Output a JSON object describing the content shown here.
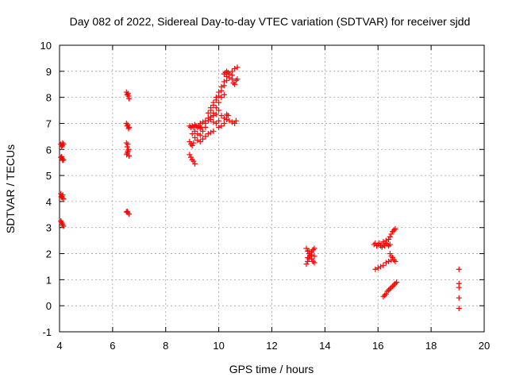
{
  "chart_data": {
    "type": "scatter",
    "title": "Day 082 of 2022, Sidereal Day-to-day VTEC variation (SDTVAR) for receiver sjdd",
    "xlabel": "GPS time / hours",
    "ylabel": "SDTVAR / TECUs",
    "xlim": [
      4,
      20
    ],
    "ylim": [
      -1,
      10
    ],
    "xticks": [
      4,
      6,
      8,
      10,
      12,
      14,
      16,
      18,
      20
    ],
    "yticks": [
      -1,
      0,
      1,
      2,
      3,
      4,
      5,
      6,
      7,
      8,
      9,
      10
    ],
    "grid": true,
    "marker": "+",
    "color": "#ff0000",
    "series": [
      {
        "name": "sjdd",
        "points": [
          [
            4.05,
            6.2
          ],
          [
            4.1,
            6.15
          ],
          [
            4.15,
            6.2
          ],
          [
            4.08,
            6.1
          ],
          [
            4.12,
            6.25
          ],
          [
            4.05,
            5.7
          ],
          [
            4.1,
            5.65
          ],
          [
            4.15,
            5.6
          ],
          [
            4.08,
            5.72
          ],
          [
            4.12,
            5.58
          ],
          [
            4.05,
            4.3
          ],
          [
            4.08,
            4.2
          ],
          [
            4.1,
            4.15
          ],
          [
            4.15,
            4.1
          ],
          [
            4.12,
            4.25
          ],
          [
            4.06,
            4.18
          ],
          [
            4.05,
            3.25
          ],
          [
            4.1,
            3.15
          ],
          [
            4.15,
            3.05
          ],
          [
            4.08,
            3.2
          ],
          [
            4.12,
            3.1
          ],
          [
            6.52,
            8.2
          ],
          [
            6.58,
            8.15
          ],
          [
            6.6,
            8.05
          ],
          [
            6.62,
            7.95
          ],
          [
            6.55,
            8.1
          ],
          [
            6.52,
            7.0
          ],
          [
            6.57,
            6.95
          ],
          [
            6.62,
            6.85
          ],
          [
            6.55,
            6.9
          ],
          [
            6.6,
            6.8
          ],
          [
            6.52,
            6.25
          ],
          [
            6.57,
            6.2
          ],
          [
            6.55,
            6.1
          ],
          [
            6.6,
            6.0
          ],
          [
            6.58,
            5.95
          ],
          [
            6.55,
            5.85
          ],
          [
            6.62,
            5.75
          ],
          [
            6.53,
            5.8
          ],
          [
            6.57,
            5.9
          ],
          [
            6.52,
            3.6
          ],
          [
            6.57,
            3.58
          ],
          [
            6.62,
            3.52
          ],
          [
            6.55,
            3.62
          ],
          [
            8.9,
            5.8
          ],
          [
            8.95,
            5.7
          ],
          [
            9.0,
            5.6
          ],
          [
            9.05,
            5.55
          ],
          [
            9.1,
            5.45
          ],
          [
            8.9,
            6.3
          ],
          [
            8.95,
            6.2
          ],
          [
            9.0,
            6.15
          ],
          [
            9.05,
            6.25
          ],
          [
            8.9,
            6.9
          ],
          [
            8.95,
            6.85
          ],
          [
            9.0,
            6.9
          ],
          [
            9.05,
            6.85
          ],
          [
            9.1,
            6.95
          ],
          [
            9.15,
            6.9
          ],
          [
            9.2,
            6.85
          ],
          [
            9.25,
            6.9
          ],
          [
            9.3,
            6.8
          ],
          [
            9.35,
            6.85
          ],
          [
            9.0,
            6.6
          ],
          [
            9.1,
            6.45
          ],
          [
            9.2,
            6.35
          ],
          [
            9.3,
            6.3
          ],
          [
            9.4,
            6.4
          ],
          [
            9.5,
            6.5
          ],
          [
            9.6,
            6.6
          ],
          [
            9.7,
            6.65
          ],
          [
            9.8,
            6.7
          ],
          [
            9.1,
            6.7
          ],
          [
            9.2,
            6.6
          ],
          [
            9.3,
            6.55
          ],
          [
            9.4,
            6.7
          ],
          [
            9.5,
            6.85
          ],
          [
            9.3,
            7.0
          ],
          [
            9.4,
            7.05
          ],
          [
            9.5,
            7.1
          ],
          [
            9.6,
            7.2
          ],
          [
            9.7,
            7.25
          ],
          [
            9.8,
            7.3
          ],
          [
            9.9,
            7.35
          ],
          [
            9.5,
            7.0
          ],
          [
            9.6,
            7.1
          ],
          [
            9.7,
            7.15
          ],
          [
            9.8,
            7.05
          ],
          [
            9.9,
            7.0
          ],
          [
            10.0,
            7.1
          ],
          [
            9.6,
            7.4
          ],
          [
            9.7,
            7.6
          ],
          [
            9.8,
            7.8
          ],
          [
            9.9,
            8.0
          ],
          [
            10.0,
            8.2
          ],
          [
            10.1,
            8.4
          ],
          [
            10.2,
            8.6
          ],
          [
            10.3,
            8.8
          ],
          [
            10.4,
            8.9
          ],
          [
            10.5,
            9.0
          ],
          [
            10.6,
            9.1
          ],
          [
            10.7,
            9.15
          ],
          [
            9.7,
            7.5
          ],
          [
            9.8,
            7.7
          ],
          [
            9.9,
            7.9
          ],
          [
            10.0,
            8.05
          ],
          [
            10.1,
            8.25
          ],
          [
            10.2,
            8.45
          ],
          [
            10.3,
            8.65
          ],
          [
            10.4,
            8.75
          ],
          [
            10.5,
            8.85
          ],
          [
            9.8,
            7.4
          ],
          [
            9.9,
            7.6
          ],
          [
            10.0,
            7.8
          ],
          [
            10.1,
            8.0
          ],
          [
            10.2,
            8.1
          ],
          [
            10.2,
            8.9
          ],
          [
            10.25,
            8.95
          ],
          [
            10.3,
            9.0
          ],
          [
            10.35,
            8.95
          ],
          [
            10.5,
            8.7
          ],
          [
            10.55,
            8.55
          ],
          [
            10.6,
            8.5
          ],
          [
            10.65,
            8.65
          ],
          [
            10.7,
            8.7
          ],
          [
            10.0,
            7.5
          ],
          [
            10.1,
            7.3
          ],
          [
            10.2,
            7.2
          ],
          [
            10.3,
            7.15
          ],
          [
            10.4,
            7.1
          ],
          [
            10.5,
            7.05
          ],
          [
            10.6,
            7.0
          ],
          [
            10.65,
            7.1
          ],
          [
            10.0,
            6.85
          ],
          [
            10.1,
            6.9
          ],
          [
            10.2,
            7.0
          ],
          [
            10.3,
            7.35
          ],
          [
            10.35,
            7.3
          ],
          [
            13.3,
            2.2
          ],
          [
            13.35,
            2.1
          ],
          [
            13.4,
            2.0
          ],
          [
            13.45,
            1.9
          ],
          [
            13.5,
            1.8
          ],
          [
            13.55,
            1.7
          ],
          [
            13.6,
            1.65
          ],
          [
            13.3,
            1.6
          ],
          [
            13.35,
            1.7
          ],
          [
            13.4,
            1.8
          ],
          [
            13.45,
            1.95
          ],
          [
            13.5,
            2.05
          ],
          [
            13.55,
            2.15
          ],
          [
            13.6,
            2.2
          ],
          [
            13.35,
            1.85
          ],
          [
            13.5,
            1.95
          ],
          [
            13.6,
            1.9
          ],
          [
            13.4,
            2.1
          ],
          [
            15.85,
            2.35
          ],
          [
            15.9,
            2.4
          ],
          [
            15.95,
            2.3
          ],
          [
            16.0,
            2.35
          ],
          [
            16.05,
            2.4
          ],
          [
            16.1,
            2.3
          ],
          [
            16.15,
            2.25
          ],
          [
            16.2,
            2.35
          ],
          [
            16.25,
            2.3
          ],
          [
            16.3,
            2.4
          ],
          [
            16.35,
            2.35
          ],
          [
            16.4,
            2.3
          ],
          [
            16.45,
            2.35
          ],
          [
            15.9,
            1.4
          ],
          [
            16.0,
            1.45
          ],
          [
            16.1,
            1.5
          ],
          [
            16.2,
            1.55
          ],
          [
            16.3,
            1.65
          ],
          [
            16.4,
            1.7
          ],
          [
            16.5,
            1.75
          ],
          [
            16.2,
            2.45
          ],
          [
            16.3,
            2.5
          ],
          [
            16.4,
            2.55
          ],
          [
            16.45,
            2.65
          ],
          [
            16.5,
            2.75
          ],
          [
            16.55,
            2.85
          ],
          [
            16.6,
            2.9
          ],
          [
            16.65,
            2.95
          ],
          [
            16.45,
            2.0
          ],
          [
            16.5,
            1.9
          ],
          [
            16.55,
            1.85
          ],
          [
            16.6,
            1.75
          ],
          [
            16.65,
            1.7
          ],
          [
            16.2,
            0.35
          ],
          [
            16.25,
            0.4
          ],
          [
            16.3,
            0.45
          ],
          [
            16.35,
            0.55
          ],
          [
            16.4,
            0.6
          ],
          [
            16.45,
            0.65
          ],
          [
            16.5,
            0.7
          ],
          [
            16.55,
            0.75
          ],
          [
            16.6,
            0.8
          ],
          [
            16.65,
            0.85
          ],
          [
            16.7,
            0.9
          ],
          [
            19.05,
            1.4
          ],
          [
            19.05,
            0.85
          ],
          [
            19.05,
            0.7
          ],
          [
            19.05,
            0.3
          ],
          [
            19.05,
            -0.1
          ]
        ]
      }
    ]
  }
}
